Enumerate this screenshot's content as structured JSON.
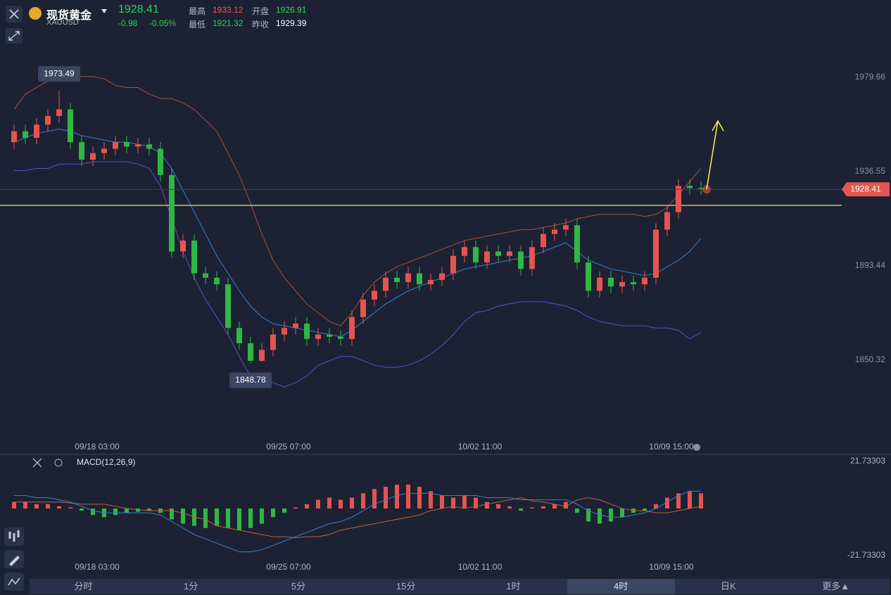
{
  "header": {
    "name": "现货黄金",
    "symbol": "XAUUSD",
    "last_price": "1928.41",
    "change": "-0.98",
    "change_pct": "-0.05%",
    "high_label": "最高",
    "high": "1933.12",
    "open_label": "开盘",
    "open": "1926.91",
    "low_label": "最低",
    "low": "1921.32",
    "prev_label": "昨收",
    "prev": "1929.39"
  },
  "chart_data": [
    {
      "type": "candlestick",
      "up_color": "#e5554f",
      "down_color": "#2fb843",
      "x": [
        null,
        null,
        null,
        null,
        null,
        null,
        null,
        "09/18 03:00",
        null,
        null,
        null,
        null,
        null,
        null,
        null,
        null,
        null,
        null,
        null,
        null,
        null,
        null,
        null,
        null,
        "09/25 07:00",
        null,
        null,
        null,
        null,
        null,
        null,
        null,
        null,
        null,
        null,
        null,
        null,
        null,
        null,
        null,
        null,
        "10/02 11:00",
        null,
        null,
        null,
        null,
        null,
        null,
        null,
        null,
        null,
        null,
        null,
        null,
        null,
        null,
        null,
        null,
        "10/09 15:00",
        null,
        null,
        null
      ],
      "open": [
        1950,
        1955,
        1952,
        1958,
        1962,
        1965,
        1950,
        1942,
        1945,
        1947,
        1950,
        1948,
        1949,
        1947,
        1935,
        1900,
        1905,
        1890,
        1888,
        1885,
        1865,
        1858,
        1850,
        1855,
        1862,
        1865,
        1867,
        1860,
        1862,
        1861,
        1860,
        1870,
        1878,
        1882,
        1888,
        1886,
        1890,
        1885,
        1887,
        1890,
        1898,
        1902,
        1895,
        1900,
        1898,
        1900,
        1892,
        1902,
        1908,
        1910,
        1912,
        1895,
        1882,
        1888,
        1884,
        1886,
        1885,
        1888,
        1910,
        1918,
        1930,
        1929
      ],
      "high": [
        1958,
        1958,
        1961,
        1965,
        1973.49,
        1968,
        1953,
        1948,
        1950,
        1953,
        1953,
        1952,
        1952,
        1950,
        1938,
        1908,
        1908,
        1893,
        1891,
        1888,
        1868,
        1861,
        1858,
        1865,
        1868,
        1870,
        1870,
        1865,
        1865,
        1864,
        1873,
        1881,
        1885,
        1891,
        1891,
        1893,
        1893,
        1890,
        1893,
        1901,
        1905,
        1905,
        1903,
        1903,
        1903,
        1903,
        1905,
        1911,
        1913,
        1915,
        1915,
        1898,
        1891,
        1891,
        1889,
        1889,
        1891,
        1913,
        1921,
        1933,
        1933,
        1932
      ],
      "low": [
        1947,
        1949,
        1949,
        1955,
        1959,
        1947,
        1939,
        1939,
        1942,
        1944,
        1945,
        1945,
        1944,
        1932,
        1897,
        1897,
        1887,
        1885,
        1882,
        1862,
        1855,
        1848.78,
        1849.5,
        1852,
        1859,
        1862,
        1857,
        1857,
        1858,
        1857,
        1857,
        1867,
        1875,
        1879,
        1883,
        1883,
        1882,
        1882,
        1884,
        1887,
        1895,
        1892,
        1892,
        1895,
        1895,
        1889,
        1889,
        1899,
        1905,
        1907,
        1892,
        1879,
        1879,
        1881,
        1881,
        1882,
        1882,
        1885,
        1907,
        1915,
        1926,
        1926
      ],
      "close": [
        1955,
        1952,
        1958,
        1962,
        1965,
        1950,
        1942,
        1945,
        1947,
        1950,
        1948,
        1949,
        1947,
        1935,
        1900,
        1905,
        1890,
        1888,
        1885,
        1865,
        1858,
        1850,
        1855,
        1862,
        1865,
        1867,
        1860,
        1862,
        1861,
        1860,
        1870,
        1878,
        1882,
        1888,
        1886,
        1890,
        1885,
        1887,
        1890,
        1898,
        1902,
        1895,
        1900,
        1898,
        1900,
        1892,
        1902,
        1908,
        1910,
        1912,
        1895,
        1882,
        1888,
        1884,
        1886,
        1885,
        1888,
        1910,
        1918,
        1930,
        1929,
        1928.41
      ],
      "lines": [
        {
          "color": "#a8503c",
          "values": [
            1965,
            1972,
            1975,
            1978,
            1980,
            1980,
            1980,
            1980,
            1979,
            1976,
            1975,
            1975,
            1972,
            1970,
            1970,
            1968,
            1965,
            1960,
            1955,
            1945,
            1935,
            1922,
            1908,
            1896,
            1888,
            1882,
            1876,
            1872,
            1868,
            1866,
            1872,
            1880,
            1886,
            1890,
            1893,
            1895,
            1897,
            1899,
            1901,
            1903,
            1905,
            1906,
            1907,
            1908,
            1909,
            1910,
            1910,
            1911,
            1912,
            1913,
            1915,
            1916,
            1917,
            1917,
            1917,
            1917,
            1916,
            1917,
            1920,
            1926,
            1932,
            1938
          ]
        },
        {
          "color": "#3a7fd0",
          "values": [
            1950,
            1952,
            1954,
            1955,
            1956,
            1955,
            1953,
            1952,
            1951,
            1950,
            1950,
            1949,
            1948,
            1945,
            1938,
            1928,
            1918,
            1908,
            1898,
            1890,
            1882,
            1875,
            1870,
            1867,
            1866,
            1865,
            1864,
            1863,
            1862,
            1861,
            1864,
            1868,
            1872,
            1876,
            1879,
            1882,
            1884,
            1886,
            1888,
            1890,
            1892,
            1893,
            1894,
            1895,
            1896,
            1897,
            1898,
            1900,
            1902,
            1904,
            1900,
            1896,
            1894,
            1892,
            1891,
            1890,
            1889,
            1890,
            1893,
            1896,
            1900,
            1906
          ]
        },
        {
          "color": "#6a4bc4",
          "values": [
            1937,
            1937,
            1938,
            1938,
            1940,
            1940,
            1940,
            1941,
            1941,
            1941,
            1941,
            1940,
            1938,
            1930,
            1915,
            1900,
            1888,
            1878,
            1870,
            1862,
            1852,
            1843,
            1840,
            1840,
            1838,
            1840,
            1843,
            1848,
            1850,
            1852,
            1852,
            1850,
            1848,
            1847,
            1847,
            1848,
            1850,
            1853,
            1857,
            1862,
            1868,
            1872,
            1873,
            1875,
            1876,
            1877,
            1877,
            1877,
            1876,
            1875,
            1873,
            1870,
            1868,
            1867,
            1866,
            1866,
            1866,
            1865,
            1865,
            1864,
            1860,
            1863
          ]
        }
      ],
      "level_line": 1921.1,
      "level_color": "#f2e24a",
      "ylim": [
        1815.56,
        2015.05
      ],
      "yticks": [
        1979.66,
        1936.55,
        1893.44,
        1850.32
      ]
    },
    {
      "type": "macd",
      "title": "MACD(12,26,9)",
      "up_color": "#e5554f",
      "down_color": "#2fb843",
      "hist": [
        3,
        3,
        2,
        2,
        1,
        0.5,
        -1,
        -3,
        -4,
        -3,
        -2,
        -1.5,
        -1,
        -2,
        -5,
        -7,
        -8,
        -9,
        -8,
        -9,
        -10,
        -9,
        -7,
        -4,
        -2,
        0.5,
        2,
        4,
        5,
        4,
        5,
        7,
        9,
        10,
        11,
        11,
        10,
        8,
        6,
        5,
        6,
        5,
        3,
        2,
        1,
        -1,
        0.5,
        1,
        2,
        3,
        -2,
        -6,
        -7,
        -6,
        -4,
        -2,
        -1,
        2,
        5,
        7,
        8,
        7
      ],
      "lines": [
        {
          "color": "#3a7fd0",
          "values": [
            6,
            6,
            5,
            5,
            4,
            3,
            1,
            -1,
            -2,
            -2,
            -2,
            -2,
            -2,
            -3,
            -6,
            -9,
            -12,
            -14,
            -16,
            -18,
            -20,
            -20,
            -19,
            -17,
            -15,
            -13,
            -11,
            -9,
            -7,
            -6,
            -4,
            -1,
            2,
            4,
            6,
            7,
            7,
            7,
            6,
            6,
            6,
            6,
            5,
            5,
            5,
            4,
            4,
            4,
            4,
            4,
            2,
            -1,
            -3,
            -4,
            -4,
            -3,
            -2,
            0,
            3,
            6,
            8,
            8
          ]
        },
        {
          "color": "#c0603c",
          "values": [
            3,
            3,
            3,
            3,
            3,
            2.5,
            2,
            2,
            2,
            1,
            0,
            -0.5,
            -1,
            -1,
            -1,
            -2,
            -4,
            -5,
            -8,
            -9,
            -10,
            -11,
            -12,
            -13,
            -13,
            -13.5,
            -13,
            -13,
            -12,
            -10,
            -9,
            -8,
            -7,
            -6,
            -5,
            -4,
            -3,
            -1,
            0,
            1,
            0,
            1,
            2,
            3,
            4,
            5,
            3.5,
            3,
            2,
            1,
            4,
            5,
            4,
            2,
            0,
            -1,
            -1,
            -2,
            -2,
            -1,
            0,
            1
          ]
        }
      ],
      "ylim": [
        -21.73303,
        21.73303
      ],
      "yticks": [
        21.73303,
        -21.73303
      ]
    }
  ],
  "tabs": [
    "分时",
    "1分",
    "5分",
    "15分",
    "1时",
    "4时",
    "日K",
    "更多▲"
  ],
  "active_tab": 5
}
